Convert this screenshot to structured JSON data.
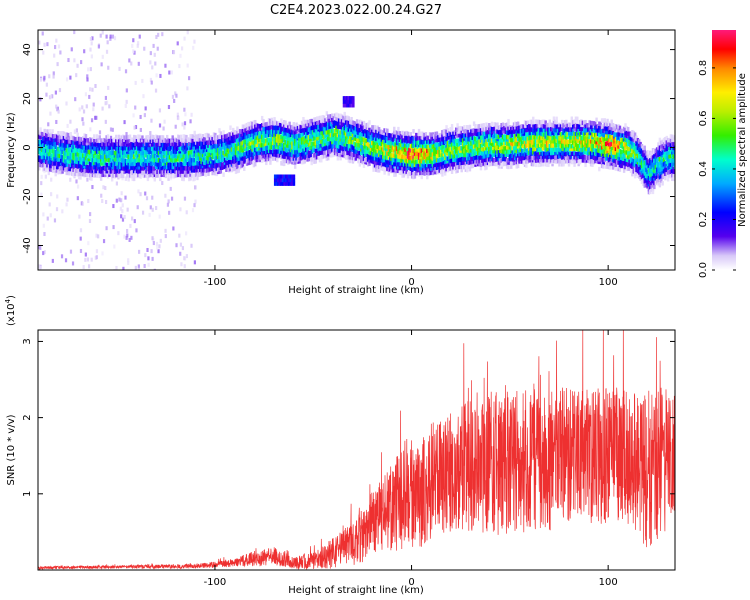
{
  "title": "C2E4.2023.022.00.24.G27",
  "chart_data": [
    {
      "type": "heatmap",
      "xlabel": "Height of straight line (km)",
      "ylabel": "Frequency (Hz)",
      "xlim": [
        -190,
        134
      ],
      "ylim": [
        -50,
        48
      ],
      "xticks": [
        -100,
        0,
        100
      ],
      "xtick_labels": [
        "-100",
        "0",
        "100"
      ],
      "yticks": [
        -40,
        -20,
        0,
        20,
        40
      ],
      "ytick_labels": [
        "-40",
        "-20",
        "0",
        "20",
        "40"
      ],
      "colorbar": {
        "label": "Normalized spectral amplitude",
        "range": [
          0,
          0.95
        ],
        "ticks": [
          0,
          0.2,
          0.4,
          0.6,
          0.8
        ],
        "tick_labels": [
          "0.0",
          "0.2",
          "0.4",
          "0.6",
          "0.8"
        ]
      },
      "ridge": {
        "x": [
          -190,
          -175,
          -160,
          -145,
          -130,
          -115,
          -100,
          -90,
          -80,
          -70,
          -60,
          -50,
          -40,
          -30,
          -20,
          -10,
          0,
          10,
          20,
          30,
          40,
          50,
          60,
          70,
          80,
          90,
          100,
          110,
          115,
          120,
          125,
          130,
          134
        ],
        "frequency": [
          0,
          -2,
          -3,
          -3,
          -3,
          -3,
          -2,
          0,
          3,
          4,
          2,
          4,
          6,
          4,
          1,
          -1,
          -2,
          -2,
          0,
          1,
          2,
          2,
          3,
          3,
          3,
          3,
          2,
          0,
          -3,
          -10,
          -6,
          -3,
          -3
        ],
        "peak_amplitude": [
          0.45,
          0.5,
          0.5,
          0.5,
          0.5,
          0.5,
          0.5,
          0.55,
          0.6,
          0.6,
          0.55,
          0.6,
          0.6,
          0.6,
          0.65,
          0.75,
          0.9,
          0.75,
          0.6,
          0.6,
          0.65,
          0.7,
          0.7,
          0.7,
          0.7,
          0.75,
          0.9,
          0.7,
          0.5,
          0.45,
          0.5,
          0.5,
          0.5
        ]
      },
      "side_features": [
        {
          "x": [
            -70,
            -60
          ],
          "frequency": -12,
          "peak_amplitude": 0.25
        },
        {
          "x": [
            -35,
            -30
          ],
          "frequency": 20,
          "peak_amplitude": 0.2
        }
      ]
    },
    {
      "type": "line",
      "xlabel": "Height of straight line (km)",
      "ylabel": "SNR (10 * v/v)",
      "y_multiplier": "(x10",
      "y_multiplier_exp": "4",
      "y_multiplier_close": ")",
      "xlim": [
        -190,
        134
      ],
      "ylim": [
        0,
        3.15
      ],
      "xticks": [
        -100,
        0,
        100
      ],
      "xtick_labels": [
        "-100",
        "0",
        "100"
      ],
      "yticks": [
        1,
        2,
        3
      ],
      "ytick_labels": [
        "1",
        "2",
        "3"
      ],
      "color": "#ee3030",
      "envelope": {
        "x": [
          -190,
          -150,
          -110,
          -100,
          -90,
          -80,
          -70,
          -60,
          -50,
          -40,
          -30,
          -25,
          -20,
          -15,
          -10,
          -5,
          0,
          5,
          10,
          20,
          30,
          40,
          50,
          60,
          70,
          80,
          90,
          100,
          110,
          115,
          120,
          125,
          130,
          134
        ],
        "mean": [
          0.03,
          0.04,
          0.05,
          0.07,
          0.1,
          0.15,
          0.18,
          0.1,
          0.12,
          0.22,
          0.35,
          0.45,
          0.6,
          0.75,
          0.85,
          0.9,
          0.95,
          1.0,
          1.15,
          1.3,
          1.35,
          1.4,
          1.45,
          1.45,
          1.45,
          1.5,
          1.5,
          1.5,
          1.5,
          1.4,
          1.3,
          1.4,
          1.45,
          1.45
        ],
        "spread": [
          0.02,
          0.02,
          0.03,
          0.04,
          0.06,
          0.1,
          0.12,
          0.08,
          0.12,
          0.2,
          0.3,
          0.35,
          0.45,
          0.5,
          0.6,
          0.65,
          0.65,
          0.7,
          0.8,
          0.85,
          0.9,
          0.95,
          1.0,
          0.95,
          0.95,
          0.9,
          0.9,
          0.9,
          0.9,
          0.95,
          1.05,
          1.0,
          0.95,
          0.95
        ]
      }
    }
  ]
}
